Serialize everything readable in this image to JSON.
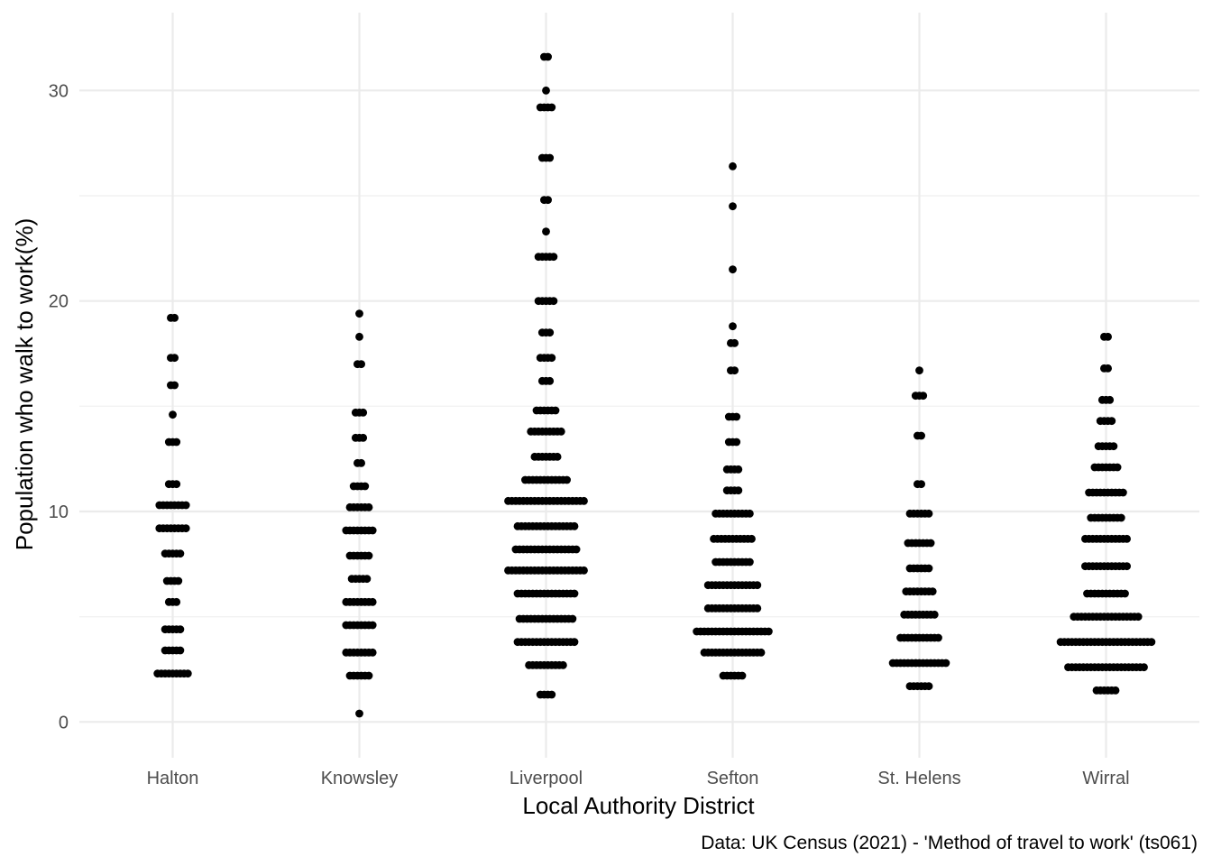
{
  "chart_data": {
    "type": "scatter",
    "subtype": "beeswarm dot plot",
    "xlabel": "Local Authority District",
    "ylabel": "Population who walk to work(%)",
    "caption": "Data: UK Census (2021) - 'Method of travel to work' (ts061)",
    "ylim": [
      -1.7,
      33.7
    ],
    "yticks": [
      0,
      10,
      20,
      30
    ],
    "ytick_labels": [
      "0",
      "10",
      "20",
      "30"
    ],
    "grid": true,
    "legend": "none",
    "colors": {
      "point": "#000000",
      "grid_major": "#ebebeb",
      "grid_minor": "#f2f2f2",
      "background": "#ffffff"
    },
    "categories": [
      "Halton",
      "Knowsley",
      "Liverpool",
      "Sefton",
      "St. Helens",
      "Wirral"
    ],
    "groups": [
      {
        "name": "Halton",
        "rows": [
          {
            "y": 19.2,
            "count": 2
          },
          {
            "y": 17.3,
            "count": 2
          },
          {
            "y": 16.0,
            "count": 2
          },
          {
            "y": 14.6,
            "count": 1
          },
          {
            "y": 13.3,
            "count": 3
          },
          {
            "y": 11.3,
            "count": 3
          },
          {
            "y": 10.3,
            "count": 8
          },
          {
            "y": 9.2,
            "count": 8
          },
          {
            "y": 8.0,
            "count": 5
          },
          {
            "y": 6.7,
            "count": 4
          },
          {
            "y": 5.7,
            "count": 3
          },
          {
            "y": 4.4,
            "count": 5
          },
          {
            "y": 3.4,
            "count": 5
          },
          {
            "y": 2.3,
            "count": 9
          }
        ]
      },
      {
        "name": "Knowsley",
        "rows": [
          {
            "y": 19.4,
            "count": 1
          },
          {
            "y": 18.3,
            "count": 1
          },
          {
            "y": 17.0,
            "count": 2
          },
          {
            "y": 14.7,
            "count": 3
          },
          {
            "y": 13.5,
            "count": 3
          },
          {
            "y": 12.3,
            "count": 2
          },
          {
            "y": 11.2,
            "count": 4
          },
          {
            "y": 10.2,
            "count": 6
          },
          {
            "y": 9.1,
            "count": 8
          },
          {
            "y": 7.9,
            "count": 6
          },
          {
            "y": 6.8,
            "count": 5
          },
          {
            "y": 5.7,
            "count": 8
          },
          {
            "y": 4.6,
            "count": 8
          },
          {
            "y": 3.3,
            "count": 8
          },
          {
            "y": 2.2,
            "count": 6
          },
          {
            "y": 0.4,
            "count": 1
          }
        ]
      },
      {
        "name": "Liverpool",
        "rows": [
          {
            "y": 31.6,
            "count": 2
          },
          {
            "y": 30.0,
            "count": 1
          },
          {
            "y": 29.2,
            "count": 4
          },
          {
            "y": 26.8,
            "count": 3
          },
          {
            "y": 24.8,
            "count": 2
          },
          {
            "y": 23.3,
            "count": 1
          },
          {
            "y": 22.1,
            "count": 5
          },
          {
            "y": 20.0,
            "count": 5
          },
          {
            "y": 18.5,
            "count": 3
          },
          {
            "y": 17.3,
            "count": 4
          },
          {
            "y": 16.2,
            "count": 3
          },
          {
            "y": 14.8,
            "count": 6
          },
          {
            "y": 13.8,
            "count": 9
          },
          {
            "y": 12.6,
            "count": 7
          },
          {
            "y": 11.5,
            "count": 12
          },
          {
            "y": 10.5,
            "count": 21
          },
          {
            "y": 9.3,
            "count": 16
          },
          {
            "y": 8.2,
            "count": 17
          },
          {
            "y": 7.2,
            "count": 21
          },
          {
            "y": 6.1,
            "count": 16
          },
          {
            "y": 4.9,
            "count": 15
          },
          {
            "y": 3.8,
            "count": 16
          },
          {
            "y": 2.7,
            "count": 10
          },
          {
            "y": 1.3,
            "count": 4
          }
        ]
      },
      {
        "name": "Sefton",
        "rows": [
          {
            "y": 26.4,
            "count": 1
          },
          {
            "y": 24.5,
            "count": 1
          },
          {
            "y": 21.5,
            "count": 1
          },
          {
            "y": 18.8,
            "count": 1
          },
          {
            "y": 18.0,
            "count": 2
          },
          {
            "y": 16.7,
            "count": 2
          },
          {
            "y": 14.5,
            "count": 3
          },
          {
            "y": 13.3,
            "count": 3
          },
          {
            "y": 12.0,
            "count": 4
          },
          {
            "y": 11.0,
            "count": 4
          },
          {
            "y": 9.9,
            "count": 10
          },
          {
            "y": 8.7,
            "count": 11
          },
          {
            "y": 7.6,
            "count": 10
          },
          {
            "y": 6.5,
            "count": 14
          },
          {
            "y": 5.4,
            "count": 14
          },
          {
            "y": 4.3,
            "count": 20
          },
          {
            "y": 3.3,
            "count": 16
          },
          {
            "y": 2.2,
            "count": 6
          }
        ]
      },
      {
        "name": "St. Helens",
        "rows": [
          {
            "y": 16.7,
            "count": 1
          },
          {
            "y": 15.5,
            "count": 3
          },
          {
            "y": 13.6,
            "count": 2
          },
          {
            "y": 11.3,
            "count": 2
          },
          {
            "y": 9.9,
            "count": 6
          },
          {
            "y": 8.5,
            "count": 7
          },
          {
            "y": 7.3,
            "count": 6
          },
          {
            "y": 6.2,
            "count": 8
          },
          {
            "y": 5.1,
            "count": 9
          },
          {
            "y": 4.0,
            "count": 11
          },
          {
            "y": 2.8,
            "count": 15
          },
          {
            "y": 1.7,
            "count": 6
          }
        ]
      },
      {
        "name": "Wirral",
        "rows": [
          {
            "y": 18.3,
            "count": 2
          },
          {
            "y": 16.8,
            "count": 2
          },
          {
            "y": 15.3,
            "count": 3
          },
          {
            "y": 14.3,
            "count": 4
          },
          {
            "y": 13.1,
            "count": 5
          },
          {
            "y": 12.1,
            "count": 7
          },
          {
            "y": 10.9,
            "count": 10
          },
          {
            "y": 9.7,
            "count": 9
          },
          {
            "y": 8.7,
            "count": 12
          },
          {
            "y": 7.4,
            "count": 12
          },
          {
            "y": 6.1,
            "count": 11
          },
          {
            "y": 5.0,
            "count": 18
          },
          {
            "y": 3.8,
            "count": 25
          },
          {
            "y": 2.6,
            "count": 21
          },
          {
            "y": 1.5,
            "count": 6
          }
        ]
      }
    ]
  }
}
